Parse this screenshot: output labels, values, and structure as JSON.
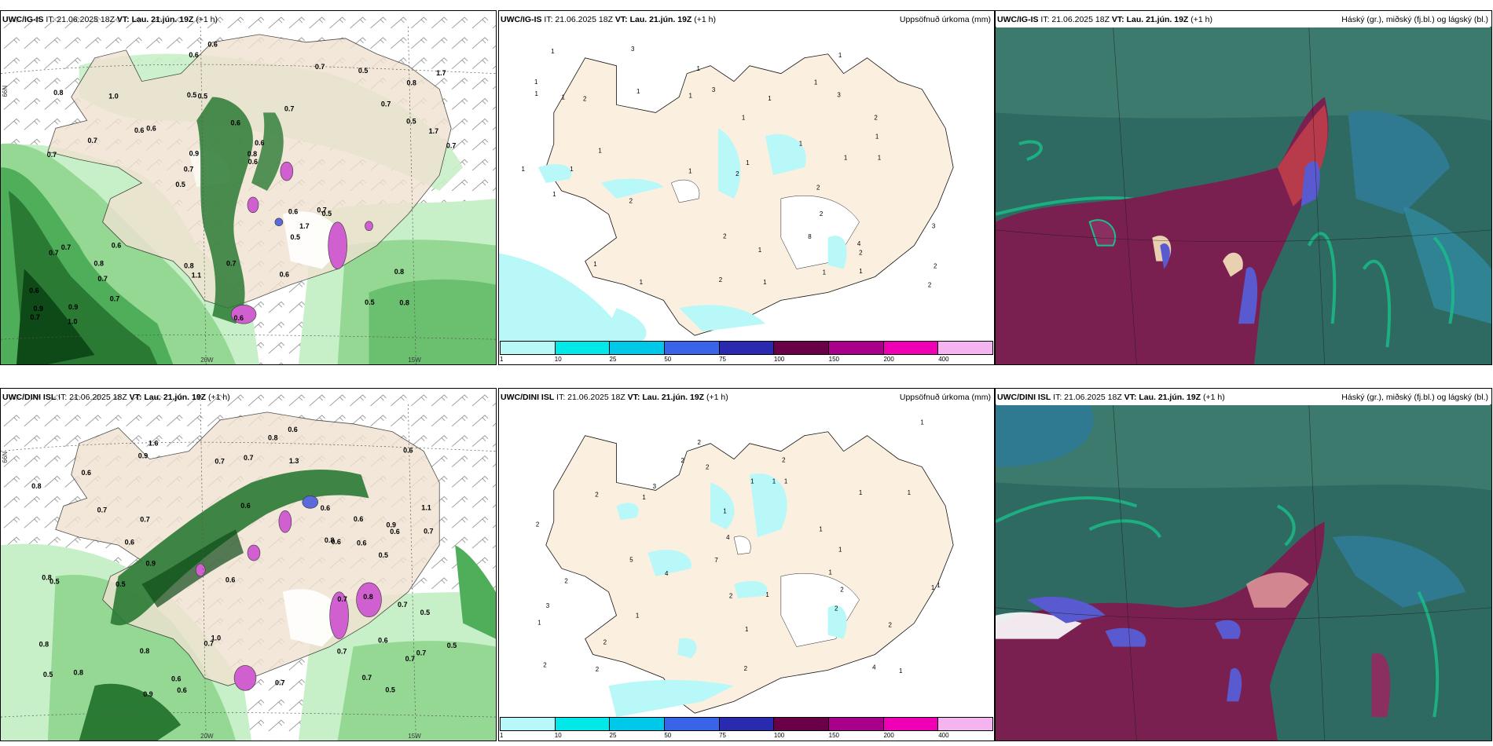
{
  "panels": {
    "p1": {
      "model": "UWC/IG-IS",
      "it": " IT: 21.06.2025 18Z ",
      "vt": "VT: Lau. 21.jún. 19Z",
      "lead": " (+1 h)",
      "right": ""
    },
    "p2": {
      "model": "UWC/IG-IS",
      "it": " IT: 21.06.2025 18Z ",
      "vt": "VT: Lau. 21.jún. 19Z",
      "lead": " (+1 h)",
      "right": "Uppsöfnuð úrkoma (mm)"
    },
    "p3": {
      "model": "UWC/IG-IS",
      "it": " IT: 21.06.2025 18Z ",
      "vt": "VT: Lau. 21.jún. 19Z",
      "lead": " (+1 h)",
      "right": "Háský (gr.), miðský (fj.bl.) og lágský (bl.)"
    },
    "p4": {
      "model": "UWC/DINI ISL",
      "it": " IT: 21.06.2025 18Z ",
      "vt": "VT: Lau. 21.jún. 19Z",
      "lead": " (+1 h)",
      "right": ""
    },
    "p5": {
      "model": "UWC/DINI ISL",
      "it": " IT: 21.06.2025 18Z ",
      "vt": "VT: Lau. 21.jún. 19Z",
      "lead": " (+1 h)",
      "right": "Uppsöfnuð úrkoma (mm)"
    },
    "p6": {
      "model": "UWC/DINI ISL",
      "it": " IT: 21.06.2025 18Z ",
      "vt": "VT: Lau. 21.jún. 19Z",
      "lead": " (+1 h)",
      "right": "Háský (gr.), miðský (fj.bl.) og lágský (bl.)"
    }
  },
  "axis": {
    "lon_20": "20W",
    "lon_15": "15W",
    "lat_66": "66N"
  },
  "colorbar": {
    "labels": [
      "1",
      "10",
      "25",
      "50",
      "75",
      "100",
      "150",
      "200",
      "400"
    ],
    "colors": [
      "#b8f8f8",
      "#00e8e8",
      "#00c8e8",
      "#3a64e8",
      "#2a2ab0",
      "#6a0048",
      "#a8008a",
      "#f000b4",
      "#f4b4f0"
    ]
  },
  "wind_values": {
    "p1": [
      "0.8",
      "0.7",
      "0.8",
      "0.5",
      "0.7",
      "0.9",
      "0.5",
      "0.6",
      "0.7",
      "0.6",
      "0.6",
      "0.7",
      "0.5",
      "0.6",
      "0.5",
      "0.8",
      "0.6",
      "0.7",
      "0.6",
      "0.5",
      "0.7",
      "0.8",
      "0.9",
      "1.0",
      "0.7",
      "0.6",
      "0.5",
      "0.8",
      "0.7",
      "0.6",
      "0.6",
      "0.7",
      "0.5",
      "0.7",
      "1.7",
      "0.8",
      "0.9",
      "1.1",
      "0.6",
      "0.7",
      "0.7",
      "1.7",
      "1.7",
      "0.6",
      "0.8",
      "1.0",
      "0.7",
      "0.7",
      "0.5",
      "0.6"
    ],
    "p4": [
      "0.6",
      "1.1",
      "0.7",
      "0.6",
      "0.5",
      "1.6",
      "0.9",
      "0.8",
      "0.6",
      "0.7",
      "0.7",
      "0.8",
      "0.5",
      "0.6",
      "0.8",
      "0.6",
      "0.7",
      "0.9",
      "1.0",
      "0.6",
      "0.8",
      "0.5",
      "0.7",
      "0.8",
      "0.6",
      "0.7",
      "0.8",
      "1.3",
      "0.6",
      "0.5",
      "0.5",
      "0.7",
      "0.9",
      "0.6",
      "0.7",
      "0.7",
      "0.6",
      "0.7",
      "0.5",
      "0.9",
      "0.8",
      "0.6",
      "0.7",
      "0.6",
      "0.5",
      "0.7",
      "0.8",
      "0.6",
      "0.7",
      "0.6"
    ]
  },
  "precip_values": {
    "p2": [
      "1",
      "2",
      "1",
      "2",
      "2",
      "3",
      "1",
      "1",
      "1",
      "1",
      "4",
      "1",
      "2",
      "1",
      "2",
      "3",
      "3",
      "8",
      "1",
      "2",
      "1",
      "2",
      "1",
      "1",
      "1",
      "2",
      "1",
      "2",
      "1",
      "1",
      "1",
      "1",
      "1",
      "1",
      "2",
      "1",
      "3",
      "1",
      "1",
      "1",
      "2",
      "1",
      "1",
      "1"
    ],
    "p5": [
      "1",
      "1",
      "2",
      "2",
      "1",
      "7",
      "4",
      "4",
      "4",
      "5",
      "2",
      "2",
      "2",
      "1",
      "2",
      "2",
      "3",
      "2",
      "1",
      "1",
      "1",
      "1",
      "2",
      "2",
      "1",
      "2",
      "2",
      "1",
      "1",
      "1",
      "1",
      "3",
      "2",
      "1",
      "1",
      "1",
      "2",
      "1",
      "1",
      "2"
    ]
  }
}
